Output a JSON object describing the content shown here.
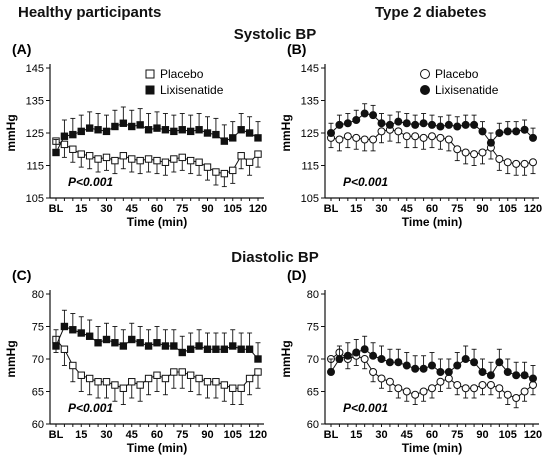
{
  "columns": [
    "Healthy participants",
    "Type 2 diabetes"
  ],
  "rows": [
    "Systolic BP",
    "Diastolic BP"
  ],
  "chart_data": [
    {
      "type": "line",
      "panel": "(A)",
      "ylabel": "mmHg",
      "xlabel": "Time (min)",
      "ylim": [
        105,
        145
      ],
      "yticks": [
        105,
        115,
        125,
        135,
        145
      ],
      "xticks": [
        "BL",
        "15",
        "30",
        "45",
        "60",
        "75",
        "90",
        "105",
        "120"
      ],
      "annotation": "P<0.001",
      "legend": "top-right",
      "grid": false,
      "x": [
        0,
        5,
        10,
        15,
        20,
        25,
        30,
        35,
        40,
        45,
        50,
        55,
        60,
        65,
        70,
        75,
        80,
        85,
        90,
        95,
        100,
        105,
        110,
        115,
        120
      ],
      "series": [
        {
          "name": "Placebo",
          "marker": "open-square",
          "values": [
            122.5,
            121.5,
            120,
            118.5,
            118,
            117,
            117.5,
            116.5,
            118,
            117,
            116.5,
            117,
            116.5,
            116,
            117,
            117.5,
            116.5,
            116,
            114.5,
            113,
            112.5,
            113.5,
            118,
            116,
            118.5
          ],
          "errors": [
            3.5,
            4,
            4,
            4,
            4,
            4,
            4,
            4,
            4,
            4,
            4,
            4,
            4,
            4,
            4,
            4,
            4,
            4,
            4,
            4,
            4,
            4,
            4,
            4,
            4
          ]
        },
        {
          "name": "Lixisenatide",
          "marker": "filled-square",
          "values": [
            119,
            124,
            124.5,
            125.5,
            126.5,
            126,
            125.5,
            127,
            128,
            127,
            127.5,
            126,
            126.5,
            126,
            125.5,
            126,
            125.5,
            126,
            125,
            124.5,
            122.5,
            123.5,
            126,
            125,
            123.5
          ],
          "errors": [
            4,
            5,
            5,
            5,
            5,
            5,
            5,
            5,
            5,
            5,
            5,
            5,
            5,
            5,
            5,
            5,
            5,
            5,
            5,
            5,
            5,
            5,
            5,
            5,
            5
          ]
        }
      ]
    },
    {
      "type": "line",
      "panel": "(B)",
      "ylabel": "mmHg",
      "xlabel": "Time (min)",
      "ylim": [
        105,
        145
      ],
      "yticks": [
        105,
        115,
        125,
        135,
        145
      ],
      "xticks": [
        "BL",
        "15",
        "30",
        "45",
        "60",
        "75",
        "90",
        "105",
        "120"
      ],
      "annotation": "P<0.001",
      "legend": "top-right",
      "grid": false,
      "x": [
        0,
        5,
        10,
        15,
        20,
        25,
        30,
        35,
        40,
        45,
        50,
        55,
        60,
        65,
        70,
        75,
        80,
        85,
        90,
        95,
        100,
        105,
        110,
        115,
        120
      ],
      "series": [
        {
          "name": "Placebo",
          "marker": "open-circle",
          "values": [
            123.5,
            123,
            124,
            123.5,
            123,
            123,
            125.5,
            126,
            125.5,
            124,
            124,
            123.5,
            124,
            123.5,
            123,
            120,
            119,
            118.5,
            119,
            120.5,
            117,
            116,
            115.5,
            115.5,
            116
          ],
          "errors": [
            3,
            3.5,
            3.5,
            3.5,
            3.5,
            3.5,
            3.5,
            3.5,
            3.5,
            3.5,
            3.5,
            3.5,
            3.5,
            3.5,
            3.5,
            3.5,
            3.5,
            3.5,
            3.5,
            3.5,
            3.5,
            3.5,
            3.5,
            3.5,
            3.5
          ]
        },
        {
          "name": "Lixisenatide",
          "marker": "filled-circle",
          "values": [
            125,
            127.5,
            128,
            129,
            131,
            130.5,
            128,
            127.5,
            128.5,
            128,
            127.5,
            128,
            127.5,
            127,
            127.5,
            127,
            127.5,
            127.5,
            125.5,
            122,
            125,
            125.5,
            125.5,
            126,
            123.5
          ],
          "errors": [
            3,
            3,
            3,
            3,
            3,
            3,
            3,
            3,
            3,
            3,
            3,
            3,
            3,
            3,
            3,
            3,
            3,
            3,
            3,
            3,
            3,
            3,
            3,
            3,
            3
          ]
        }
      ]
    },
    {
      "type": "line",
      "panel": "(C)",
      "ylabel": "mmHg",
      "xlabel": "Time (min)",
      "ylim": [
        60,
        80
      ],
      "yticks": [
        60,
        65,
        70,
        75,
        80
      ],
      "xticks": [
        "BL",
        "15",
        "30",
        "45",
        "60",
        "75",
        "90",
        "105",
        "120"
      ],
      "annotation": "P<0.001",
      "legend": "none",
      "grid": false,
      "x": [
        0,
        5,
        10,
        15,
        20,
        25,
        30,
        35,
        40,
        45,
        50,
        55,
        60,
        65,
        70,
        75,
        80,
        85,
        90,
        95,
        100,
        105,
        110,
        115,
        120
      ],
      "series": [
        {
          "name": "Placebo",
          "marker": "open-square",
          "values": [
            73,
            71.5,
            69,
            67.5,
            67,
            66.5,
            66.5,
            66,
            65.5,
            66.5,
            66,
            67,
            67.5,
            67,
            68,
            68,
            67.5,
            67,
            66.5,
            66.5,
            66,
            65.5,
            65.5,
            67,
            68
          ],
          "errors": [
            2,
            2.5,
            2.5,
            2.5,
            2.5,
            2.5,
            2.5,
            2.5,
            2.5,
            2.5,
            2.5,
            2.5,
            2.5,
            2.5,
            2.5,
            2.5,
            2.5,
            2.5,
            2.5,
            2.5,
            2.5,
            2.5,
            2.5,
            2.5,
            2.5
          ]
        },
        {
          "name": "Lixisenatide",
          "marker": "filled-square",
          "values": [
            72,
            75,
            74.5,
            74,
            73.5,
            72.5,
            73,
            72.5,
            72,
            73,
            72.5,
            72,
            72.5,
            72,
            72,
            71,
            71.5,
            72,
            71.5,
            71.5,
            71.5,
            72,
            71.5,
            71.5,
            70
          ],
          "errors": [
            2.5,
            2.5,
            2.5,
            2.5,
            2.5,
            2.5,
            2.5,
            2.5,
            2.5,
            2.5,
            2.5,
            2.5,
            2.5,
            2.5,
            2.5,
            2.5,
            2.5,
            2.5,
            2.5,
            2.5,
            2.5,
            2.5,
            2.5,
            2.5,
            2.5
          ]
        }
      ]
    },
    {
      "type": "line",
      "panel": "(D)",
      "ylabel": "mmHg",
      "xlabel": "Time (min)",
      "ylim": [
        60,
        80
      ],
      "yticks": [
        60,
        65,
        70,
        75,
        80
      ],
      "xticks": [
        "BL",
        "15",
        "30",
        "45",
        "60",
        "75",
        "90",
        "105",
        "120"
      ],
      "annotation": "P<0.001",
      "legend": "none",
      "grid": false,
      "x": [
        0,
        5,
        10,
        15,
        20,
        25,
        30,
        35,
        40,
        45,
        50,
        55,
        60,
        65,
        70,
        75,
        80,
        85,
        90,
        95,
        100,
        105,
        110,
        115,
        120
      ],
      "series": [
        {
          "name": "Placebo",
          "marker": "open-circle",
          "values": [
            70,
            71,
            70,
            70.5,
            70,
            68,
            67,
            66.5,
            65.5,
            65,
            64.5,
            65,
            65.5,
            66.5,
            67,
            66,
            65.5,
            65.5,
            66,
            66,
            65.5,
            64.5,
            64,
            65,
            66
          ],
          "errors": [
            1.5,
            1.5,
            1.5,
            1.5,
            1.5,
            1.5,
            1.5,
            1.5,
            1.5,
            1.5,
            1.5,
            1.5,
            1.5,
            1.5,
            1.5,
            1.5,
            1.5,
            1.5,
            1.5,
            1.5,
            1.5,
            1.5,
            1.5,
            1.5,
            1.5
          ]
        },
        {
          "name": "Lixisenatide",
          "marker": "filled-circle",
          "values": [
            68,
            70,
            70.5,
            71,
            71.5,
            70.5,
            70,
            69.5,
            69.5,
            69,
            68.5,
            68.5,
            69,
            68,
            68,
            69,
            70,
            69.5,
            68,
            67.5,
            69.5,
            68,
            67.5,
            67.5,
            67
          ],
          "errors": [
            2,
            2,
            2,
            2,
            2,
            2,
            2,
            2,
            2,
            2,
            2,
            2,
            2,
            2,
            2,
            2,
            2,
            2,
            2,
            2,
            2,
            2,
            2,
            2,
            2
          ]
        }
      ]
    }
  ]
}
